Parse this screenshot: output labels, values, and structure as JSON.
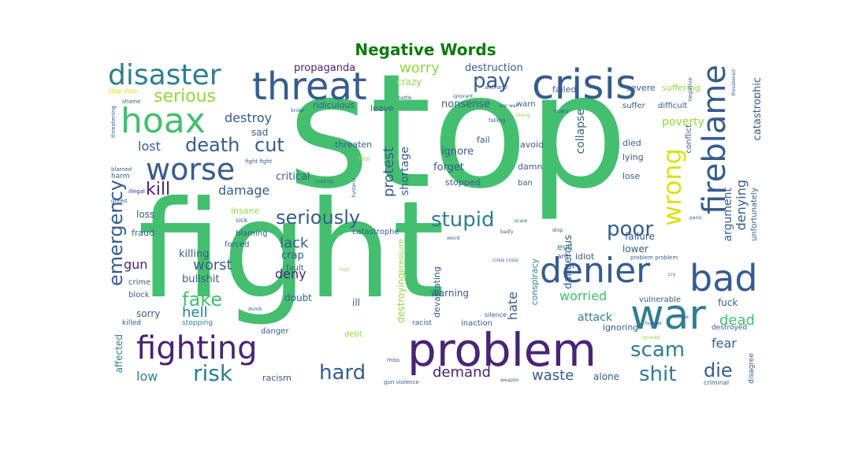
{
  "title": "Negative Words",
  "title_color": "#0a7a0a",
  "palette": {
    "green": "#44bf70",
    "teal": "#2e7f8e",
    "blue": "#365c8d",
    "purple": "#482475",
    "lime": "#93d741",
    "yellow": "#d8e219",
    "aqua": "#22a884"
  },
  "words": {
    "stop": "stop",
    "fight": "fight",
    "problem": "problem",
    "crisis": "crisis",
    "threat": "threat",
    "hoax": "hoax",
    "disaster": "disaster",
    "worse": "worse",
    "war": "war",
    "denier": "denier",
    "bad": "bad",
    "fighting": "fighting",
    "fireblame": "fireblame",
    "wrong": "wrong",
    "death": "death",
    "cut": "cut",
    "serious": "serious",
    "pay": "pay",
    "poor": "poor",
    "stupid": "stupid",
    "seriously": "seriously",
    "emergency": "emergency",
    "kill": "kill",
    "risk": "risk",
    "hard": "hard",
    "scam": "scam",
    "shit": "shit",
    "die": "die",
    "fake": "fake",
    "worst": "worst",
    "hell": "hell",
    "denying": "denying",
    "destroy": "destroy",
    "lost": "lost",
    "damage": "damage",
    "worry": "worry",
    "propaganda": "propaganda",
    "destruction": "destruction",
    "protest": "protest",
    "shortage": "shortage",
    "lack": "lack",
    "gun": "gun",
    "low": "low",
    "demand": "demand",
    "waste": "waste",
    "dead": "dead",
    "fear": "fear",
    "worried": "worried",
    "hate": "hate",
    "deny": "deny",
    "collapse": "collapse",
    "catastrophic": "catastrophic",
    "argument": "argument",
    "poverty": "poverty",
    "attack": "attack",
    "killing": "killing",
    "crap": "crap",
    "bullshit": "bullshit",
    "critical": "critical",
    "forget": "forget",
    "ignore": "ignore",
    "dangerous": "dangerous",
    "nonsense": "nonsense",
    "crazy": "crazy",
    "sad": "sad",
    "affected": "affected",
    "sorry": "sorry",
    "loss": "loss",
    "fraud": "fraud",
    "insane": "insane",
    "doubt": "doubt",
    "ill": "ill",
    "warning": "warning",
    "destroying": "destroying",
    "devastating": "devastating",
    "conspiracy": "conspiracy",
    "alone": "alone",
    "fuck": "fuck",
    "vulnerable": "vulnerable",
    "ignoring": "ignoring",
    "failure": "failure",
    "lower": "lower",
    "evil": "evil",
    "idiot": "idiot",
    "threaten": "threaten",
    "fail": "fail",
    "avoid": "avoid",
    "died": "died",
    "lying": "lying",
    "lose": "lose",
    "ridiculous": "ridiculous",
    "leave": "leave",
    "severe": "severe",
    "suffering": "suffering",
    "suffer": "suffer",
    "difficult": "difficult",
    "failed": "failed",
    "warn": "warn",
    "damn": "damn",
    "stopped": "stopped",
    "ban": "ban",
    "unfortunately": "unfortunately",
    "conflict": "conflict",
    "terrible": "terrible",
    "catastrophe": "catastrophe",
    "pressure": "pressure",
    "blaming": "blaming",
    "forced": "forced",
    "crime": "crime",
    "block": "block",
    "killed": "killed",
    "stopping": "stopping",
    "danger": "danger",
    "racism": "racism",
    "racist": "racist",
    "debt": "debt",
    "inaction": "inaction",
    "silence": "silence",
    "destroyed": "destroyed",
    "disagree": "disagree",
    "criminal": "criminal",
    "fault": "fault",
    "harm": "harm",
    "greed": "greed",
    "illegal": "illegal",
    "blamed": "blamed",
    "threatening": "threatening",
    "stop_stop": "stop stop",
    "shame": "shame",
    "anti": "anti",
    "anti_anti": "anti anti",
    "problem_problem": "problem problem",
    "fight_fight": "fight fight",
    "worst_case": "worst case",
    "fool": "fool",
    "sick": "sick",
    "falling": "falling",
    "scary": "scary",
    "gun_violence": "gun violence",
    "hysteria": "hysteria",
    "weapon": "weapon",
    "miss": "miss",
    "hunger": "hunger",
    "refuse": "refuse",
    "ignored": "ignored",
    "negative": "negative",
    "threatened": "threatened",
    "badly": "badly",
    "drop": "drop",
    "scare": "scare",
    "weird": "weird",
    "hurt": "hurt",
    "panic": "panic",
    "dumb": "dumb",
    "cutting": "cutting",
    "crisis_crisis": "crisis crisis",
    "battle": "battle",
    "ignorant": "ignorant",
    "war_war": "war war",
    "losing": "losing",
    "broke": "broke",
    "cry": "cry"
  }
}
